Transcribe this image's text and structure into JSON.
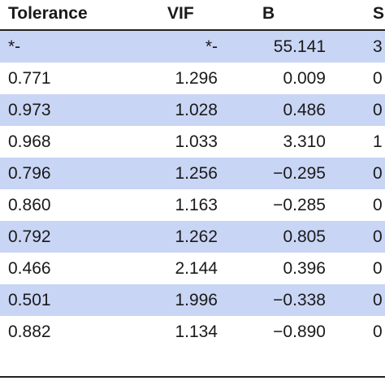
{
  "table": {
    "headers": [
      "Tolerance",
      "VIF",
      "B",
      "S"
    ],
    "rows": [
      {
        "tolerance": "*-",
        "vif": "*-",
        "b": "55.141",
        "s": "3",
        "shaded": true
      },
      {
        "tolerance": "0.771",
        "vif": "1.296",
        "b": "0.009",
        "s": "0",
        "shaded": false
      },
      {
        "tolerance": "0.973",
        "vif": "1.028",
        "b": "0.486",
        "s": "0",
        "shaded": true
      },
      {
        "tolerance": "0.968",
        "vif": "1.033",
        "b": "3.310",
        "s": "1",
        "shaded": false
      },
      {
        "tolerance": "0.796",
        "vif": "1.256",
        "b": "−0.295",
        "s": "0",
        "shaded": true
      },
      {
        "tolerance": "0.860",
        "vif": "1.163",
        "b": "−0.285",
        "s": "0",
        "shaded": false
      },
      {
        "tolerance": "0.792",
        "vif": "1.262",
        "b": "0.805",
        "s": "0",
        "shaded": true
      },
      {
        "tolerance": "0.466",
        "vif": "2.144",
        "b": "0.396",
        "s": "0",
        "shaded": false
      },
      {
        "tolerance": "0.501",
        "vif": "1.996",
        "b": "−0.338",
        "s": "0",
        "shaded": true
      },
      {
        "tolerance": "0.882",
        "vif": "1.134",
        "b": "−0.890",
        "s": "0",
        "shaded": false
      }
    ]
  },
  "colors": {
    "shaded_row": "#c9d5f4",
    "rule": "#222222"
  }
}
